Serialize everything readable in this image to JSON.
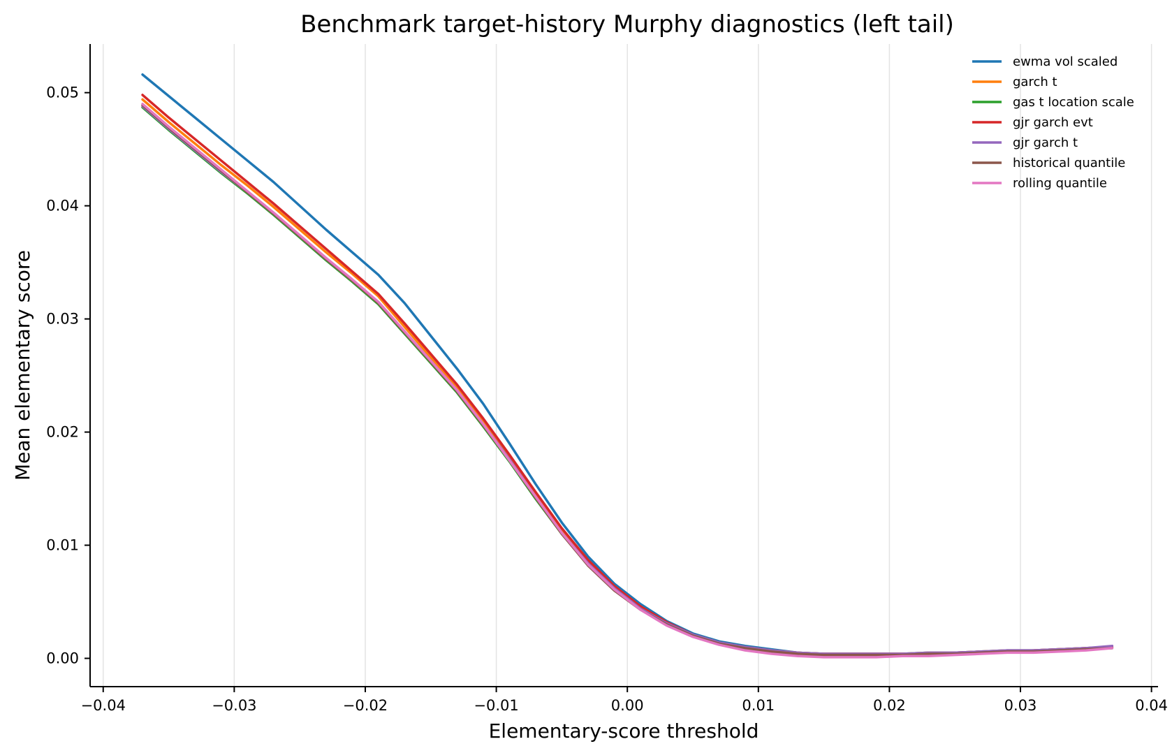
{
  "chart_data": {
    "type": "line",
    "title": "Benchmark target-history Murphy diagnostics (left tail)",
    "xlabel": "Elementary-score threshold",
    "ylabel": "Mean elementary score",
    "xlim": [
      -0.041,
      0.0405
    ],
    "ylim": [
      -0.0025,
      0.0543
    ],
    "xticks": [
      -0.04,
      -0.03,
      -0.02,
      -0.01,
      0.0,
      0.01,
      0.02,
      0.03,
      0.04
    ],
    "xtick_labels": [
      "−0.04",
      "−0.03",
      "−0.02",
      "−0.01",
      "0.00",
      "0.01",
      "0.02",
      "0.03",
      "0.04"
    ],
    "yticks": [
      0.0,
      0.01,
      0.02,
      0.03,
      0.04,
      0.05
    ],
    "ytick_labels": [
      "0.00",
      "0.01",
      "0.02",
      "0.03",
      "0.04",
      "0.05"
    ],
    "grid": "vertical",
    "legend_position": "top-right",
    "x": [
      -0.037,
      -0.035,
      -0.033,
      -0.031,
      -0.029,
      -0.027,
      -0.025,
      -0.023,
      -0.021,
      -0.019,
      -0.017,
      -0.015,
      -0.013,
      -0.011,
      -0.009,
      -0.007,
      -0.005,
      -0.003,
      -0.001,
      0.001,
      0.003,
      0.005,
      0.007,
      0.009,
      0.011,
      0.013,
      0.015,
      0.017,
      0.019,
      0.021,
      0.023,
      0.025,
      0.027,
      0.029,
      0.031,
      0.033,
      0.035,
      0.037
    ],
    "series": [
      {
        "name": "ewma vol scaled",
        "color": "#1f77b4",
        "values": [
          0.0516,
          0.0497,
          0.0478,
          0.0459,
          0.044,
          0.0421,
          0.04,
          0.0379,
          0.0359,
          0.0339,
          0.0314,
          0.0285,
          0.0256,
          0.0225,
          0.019,
          0.0154,
          0.012,
          0.009,
          0.0066,
          0.0048,
          0.0033,
          0.0022,
          0.0015,
          0.0011,
          0.0008,
          0.0005,
          0.0004,
          0.0004,
          0.0004,
          0.0004,
          0.0005,
          0.0005,
          0.0006,
          0.0007,
          0.0007,
          0.0008,
          0.0009,
          0.001
        ]
      },
      {
        "name": "garch t",
        "color": "#ff7f0e",
        "values": [
          0.0494,
          0.0474,
          0.0455,
          0.0436,
          0.0418,
          0.0399,
          0.0379,
          0.0359,
          0.034,
          0.032,
          0.0293,
          0.0266,
          0.024,
          0.021,
          0.0178,
          0.0145,
          0.0113,
          0.0085,
          0.0063,
          0.0045,
          0.0031,
          0.0021,
          0.0014,
          0.001,
          0.0007,
          0.0005,
          0.0004,
          0.0004,
          0.0004,
          0.0004,
          0.0005,
          0.0005,
          0.0006,
          0.0007,
          0.0007,
          0.0008,
          0.0009,
          0.001
        ]
      },
      {
        "name": "gas t location scale",
        "color": "#2ca02c",
        "values": [
          0.0487,
          0.0467,
          0.0448,
          0.0429,
          0.0411,
          0.0392,
          0.0372,
          0.0352,
          0.0333,
          0.0313,
          0.0287,
          0.0261,
          0.0235,
          0.0205,
          0.0174,
          0.0141,
          0.011,
          0.0083,
          0.0061,
          0.0044,
          0.003,
          0.002,
          0.0013,
          0.0009,
          0.0006,
          0.0004,
          0.0003,
          0.0003,
          0.0003,
          0.0003,
          0.0004,
          0.0004,
          0.0005,
          0.0006,
          0.0006,
          0.0007,
          0.0008,
          0.0009
        ]
      },
      {
        "name": "gjr garch evt",
        "color": "#d62728",
        "values": [
          0.0498,
          0.0478,
          0.0459,
          0.044,
          0.0421,
          0.0402,
          0.0382,
          0.0362,
          0.0342,
          0.0322,
          0.0296,
          0.0269,
          0.0242,
          0.0212,
          0.018,
          0.0147,
          0.0115,
          0.0087,
          0.0064,
          0.0046,
          0.0032,
          0.0021,
          0.0014,
          0.001,
          0.0007,
          0.0005,
          0.0004,
          0.0004,
          0.0004,
          0.0004,
          0.0004,
          0.0005,
          0.0006,
          0.0006,
          0.0007,
          0.0008,
          0.0009,
          0.001
        ]
      },
      {
        "name": "gjr garch t",
        "color": "#9467bd",
        "values": [
          0.0488,
          0.0468,
          0.0449,
          0.043,
          0.0412,
          0.0393,
          0.0373,
          0.0353,
          0.0334,
          0.0315,
          0.0289,
          0.0263,
          0.0237,
          0.0207,
          0.0176,
          0.0143,
          0.0111,
          0.0084,
          0.0062,
          0.0044,
          0.0031,
          0.0021,
          0.0014,
          0.001,
          0.0007,
          0.0005,
          0.0004,
          0.0004,
          0.0004,
          0.0004,
          0.0005,
          0.0005,
          0.0006,
          0.0007,
          0.0007,
          0.0008,
          0.0009,
          0.0011
        ]
      },
      {
        "name": "historical quantile",
        "color": "#8c564b",
        "values": [
          0.0489,
          0.0469,
          0.045,
          0.0431,
          0.0412,
          0.0393,
          0.0373,
          0.0353,
          0.0334,
          0.0314,
          0.0288,
          0.0262,
          0.0236,
          0.0206,
          0.0175,
          0.0142,
          0.011,
          0.0082,
          0.006,
          0.0043,
          0.003,
          0.002,
          0.0013,
          0.0009,
          0.0006,
          0.0004,
          0.0003,
          0.0003,
          0.0003,
          0.0003,
          0.0004,
          0.0004,
          0.0005,
          0.0006,
          0.0006,
          0.0007,
          0.0008,
          0.0009
        ]
      },
      {
        "name": "rolling quantile",
        "color": "#e377c2",
        "values": [
          0.049,
          0.047,
          0.0451,
          0.0432,
          0.0413,
          0.0394,
          0.0374,
          0.0354,
          0.0335,
          0.0315,
          0.0289,
          0.0263,
          0.0237,
          0.0207,
          0.0175,
          0.0143,
          0.0111,
          0.0083,
          0.0061,
          0.0043,
          0.0029,
          0.0019,
          0.0012,
          0.0007,
          0.0004,
          0.0002,
          0.0001,
          0.0001,
          0.0001,
          0.0002,
          0.0002,
          0.0003,
          0.0004,
          0.0005,
          0.0005,
          0.0006,
          0.0007,
          0.0009
        ]
      }
    ]
  }
}
